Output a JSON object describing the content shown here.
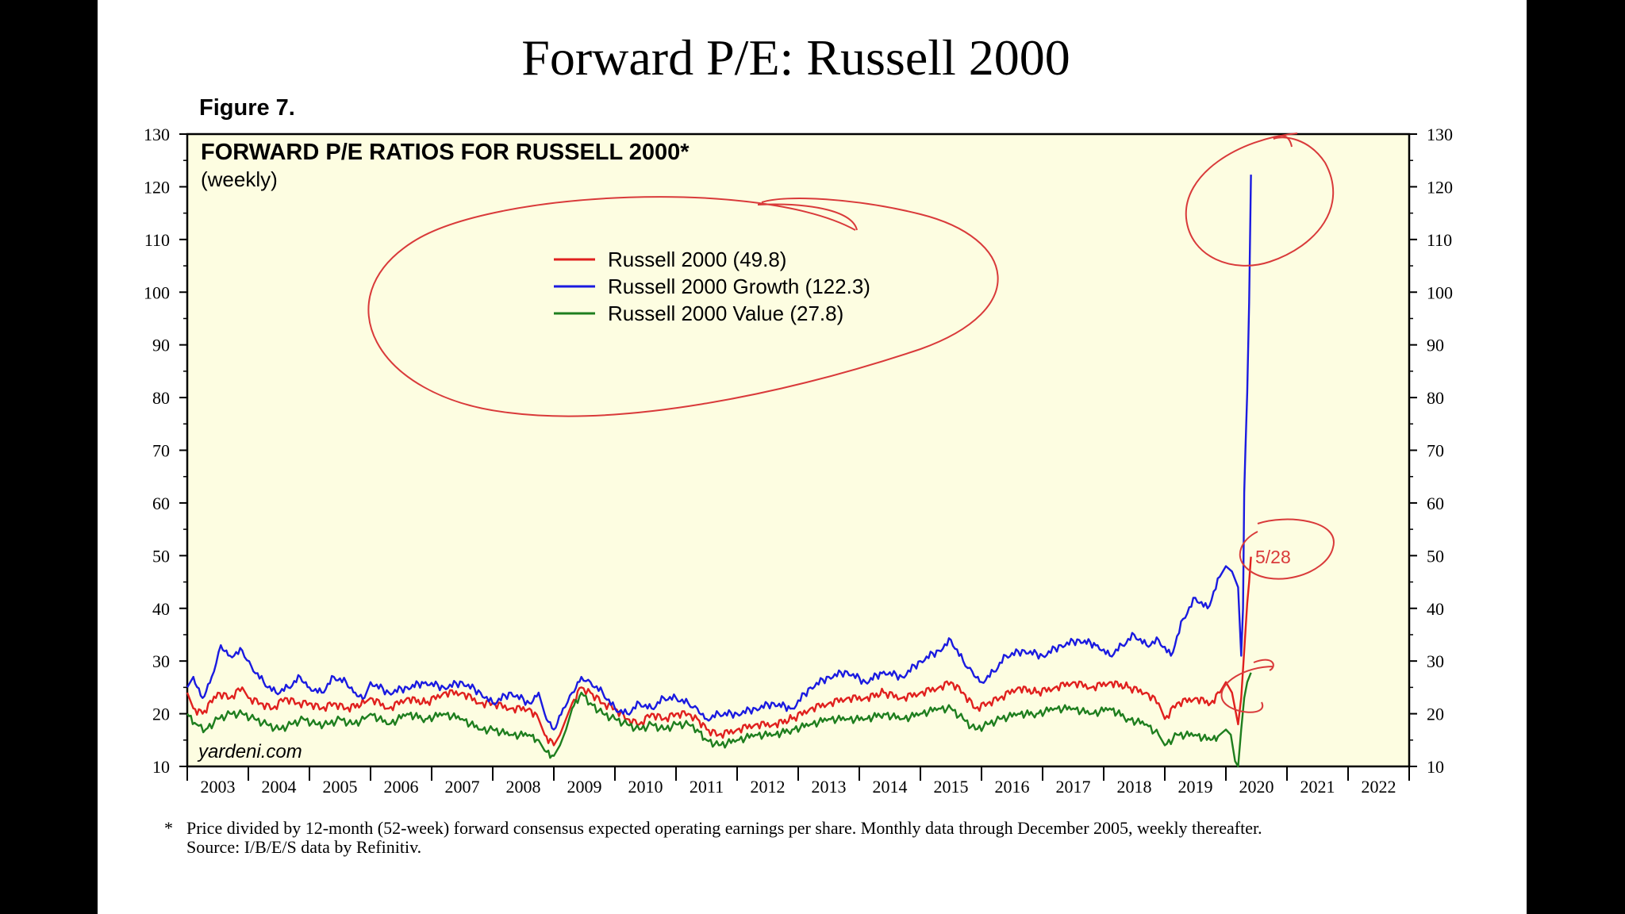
{
  "slide": {
    "title": "Forward P/E: Russell 2000",
    "figure_label": "Figure 7.",
    "footnote_marker": "*",
    "footnote_line1": "Price divided by 12-month (52-week) forward consensus expected operating earnings per share. Monthly data through December 2005, weekly thereafter.",
    "footnote_line2": "Source: I/B/E/S data by Refinitiv."
  },
  "colors": {
    "plot_background": "#fdfde1",
    "russell_2000": "#e0201e",
    "russell_2000_growth": "#1a1ae0",
    "russell_2000_value": "#1e7e1e",
    "annotation_ink": "#d93a3a"
  },
  "annotations": {
    "date_note": "5/28",
    "marks": [
      "ellipse around legend",
      "circle around Growth peak",
      "circle around Russell 2000 endpoint",
      "circle around Value endpoint"
    ]
  },
  "chart_data": {
    "type": "line",
    "title": "FORWARD P/E RATIOS FOR RUSSELL 2000*",
    "subtitle": "(weekly)",
    "watermark": "yardeni.com",
    "xlabel": "",
    "ylabel": "",
    "xlim": [
      2003.0,
      2023.0
    ],
    "ylim": [
      10,
      130
    ],
    "yticks": [
      10,
      20,
      30,
      40,
      50,
      60,
      70,
      80,
      90,
      100,
      110,
      120,
      130
    ],
    "year_labels": [
      "2003",
      "2004",
      "2005",
      "2006",
      "2007",
      "2008",
      "2009",
      "2010",
      "2011",
      "2012",
      "2013",
      "2014",
      "2015",
      "2016",
      "2017",
      "2018",
      "2019",
      "2020",
      "2021",
      "2022"
    ],
    "grid": false,
    "legend_position": "top-center",
    "series": [
      {
        "name": "Russell 2000 (49.8)",
        "color_key": "russell_2000",
        "x": [
          2003.0,
          2003.1,
          2003.25,
          2003.5,
          2003.7,
          2003.9,
          2004.0,
          2004.2,
          2004.4,
          2004.6,
          2004.8,
          2005.0,
          2005.2,
          2005.4,
          2005.6,
          2005.9,
          2006.0,
          2006.3,
          2006.6,
          2006.9,
          2007.2,
          2007.5,
          2007.8,
          2008.0,
          2008.3,
          2008.6,
          2008.75,
          2008.85,
          2009.0,
          2009.1,
          2009.2,
          2009.3,
          2009.45,
          2009.6,
          2009.8,
          2010.0,
          2010.2,
          2010.4,
          2010.6,
          2010.8,
          2011.0,
          2011.2,
          2011.35,
          2011.5,
          2011.7,
          2012.0,
          2012.3,
          2012.6,
          2012.9,
          2013.2,
          2013.5,
          2013.8,
          2014.1,
          2014.4,
          2014.7,
          2015.0,
          2015.3,
          2015.5,
          2015.7,
          2015.9,
          2016.1,
          2016.3,
          2016.6,
          2016.9,
          2017.2,
          2017.5,
          2017.8,
          2018.1,
          2018.4,
          2018.7,
          2018.9,
          2019.0,
          2019.2,
          2019.5,
          2019.75,
          2019.9,
          2020.0,
          2020.1,
          2020.2,
          2020.25,
          2020.3,
          2020.35,
          2020.38,
          2020.41
        ],
        "values": [
          24,
          21,
          20,
          24,
          23,
          25,
          23,
          22,
          21,
          23,
          22,
          22,
          21,
          22,
          21,
          22,
          23,
          21,
          23,
          22,
          24,
          24,
          22,
          22,
          21,
          21,
          19,
          16,
          14,
          16,
          19,
          22,
          25,
          24,
          22,
          21,
          19,
          18,
          20,
          19,
          20,
          20,
          19,
          17,
          16,
          17,
          18,
          18,
          19,
          21,
          22,
          23,
          23,
          24,
          23,
          24,
          25,
          26,
          24,
          21,
          22,
          23,
          25,
          24,
          25,
          26,
          25,
          26,
          25,
          24,
          22,
          19,
          22,
          23,
          22,
          24,
          26,
          24,
          18,
          23,
          32,
          41,
          45,
          49.8
        ]
      },
      {
        "name": "Russell 2000 Growth (122.3)",
        "color_key": "russell_2000_growth",
        "x": [
          2003.0,
          2003.1,
          2003.25,
          2003.4,
          2003.55,
          2003.7,
          2003.9,
          2004.05,
          2004.25,
          2004.45,
          2004.65,
          2004.85,
          2005.0,
          2005.2,
          2005.4,
          2005.6,
          2005.75,
          2005.9,
          2006.0,
          2006.3,
          2006.6,
          2006.9,
          2007.2,
          2007.5,
          2007.8,
          2008.0,
          2008.3,
          2008.6,
          2008.75,
          2008.85,
          2009.0,
          2009.15,
          2009.3,
          2009.45,
          2009.6,
          2009.8,
          2010.0,
          2010.2,
          2010.4,
          2010.6,
          2010.8,
          2011.0,
          2011.2,
          2011.35,
          2011.5,
          2011.7,
          2012.0,
          2012.3,
          2012.6,
          2012.9,
          2013.2,
          2013.5,
          2013.8,
          2014.1,
          2014.4,
          2014.7,
          2015.0,
          2015.3,
          2015.5,
          2015.7,
          2015.85,
          2016.0,
          2016.2,
          2016.4,
          2016.7,
          2017.0,
          2017.3,
          2017.6,
          2017.9,
          2018.1,
          2018.3,
          2018.5,
          2018.7,
          2018.9,
          2019.1,
          2019.3,
          2019.5,
          2019.7,
          2019.9,
          2020.0,
          2020.1,
          2020.2,
          2020.25,
          2020.28,
          2020.3,
          2020.32,
          2020.35,
          2020.38,
          2020.41
        ],
        "values": [
          25,
          27,
          23,
          27,
          33,
          31,
          32,
          29,
          26,
          24,
          25,
          27,
          25,
          24,
          27,
          26,
          24,
          23,
          26,
          24,
          25,
          26,
          25,
          26,
          24,
          22,
          24,
          22,
          24,
          20,
          17,
          21,
          24,
          27,
          26,
          24,
          21,
          20,
          22,
          21,
          23,
          23,
          22,
          21,
          19,
          20,
          20,
          21,
          22,
          21,
          25,
          27,
          28,
          26,
          28,
          27,
          30,
          32,
          34,
          30,
          28,
          26,
          28,
          31,
          32,
          31,
          33,
          34,
          33,
          31,
          33,
          35,
          33,
          34,
          31,
          38,
          42,
          40,
          46,
          48,
          47,
          44,
          31,
          40,
          62,
          70,
          81,
          98,
          122.3
        ]
      },
      {
        "name": "Russell 2000 Value (27.8)",
        "color_key": "russell_2000_value",
        "x": [
          2003.0,
          2003.15,
          2003.3,
          2003.5,
          2003.7,
          2003.9,
          2004.1,
          2004.3,
          2004.5,
          2004.7,
          2004.9,
          2005.1,
          2005.3,
          2005.5,
          2005.7,
          2005.9,
          2006.0,
          2006.3,
          2006.6,
          2006.9,
          2007.2,
          2007.5,
          2007.8,
          2008.0,
          2008.3,
          2008.6,
          2008.75,
          2008.85,
          2009.0,
          2009.1,
          2009.2,
          2009.3,
          2009.45,
          2009.6,
          2009.8,
          2010.0,
          2010.2,
          2010.4,
          2010.6,
          2010.8,
          2011.0,
          2011.2,
          2011.35,
          2011.5,
          2011.7,
          2012.0,
          2012.3,
          2012.6,
          2012.9,
          2013.2,
          2013.5,
          2013.8,
          2014.1,
          2014.4,
          2014.7,
          2015.0,
          2015.3,
          2015.5,
          2015.7,
          2015.9,
          2016.1,
          2016.3,
          2016.6,
          2016.9,
          2017.2,
          2017.5,
          2017.8,
          2018.1,
          2018.4,
          2018.7,
          2018.9,
          2019.0,
          2019.2,
          2019.5,
          2019.75,
          2019.9,
          2020.0,
          2020.08,
          2020.15,
          2020.2,
          2020.25,
          2020.3,
          2020.35,
          2020.41
        ],
        "values": [
          20,
          18,
          17,
          19,
          20,
          20,
          19,
          18,
          17,
          18,
          19,
          18,
          18,
          19,
          18,
          19,
          20,
          18,
          20,
          19,
          20,
          19,
          17,
          17,
          16,
          16,
          15,
          13,
          12,
          14,
          17,
          21,
          24,
          22,
          20,
          19,
          18,
          17,
          18,
          17,
          18,
          18,
          17,
          15,
          14,
          15,
          16,
          16,
          17,
          18,
          19,
          19,
          19,
          20,
          19,
          20,
          21,
          21,
          19,
          17,
          18,
          19,
          20,
          20,
          21,
          21,
          20,
          21,
          19,
          18,
          16,
          14,
          16,
          16,
          15,
          16,
          17,
          16,
          11,
          10,
          17,
          23,
          26,
          27.8
        ]
      }
    ]
  }
}
